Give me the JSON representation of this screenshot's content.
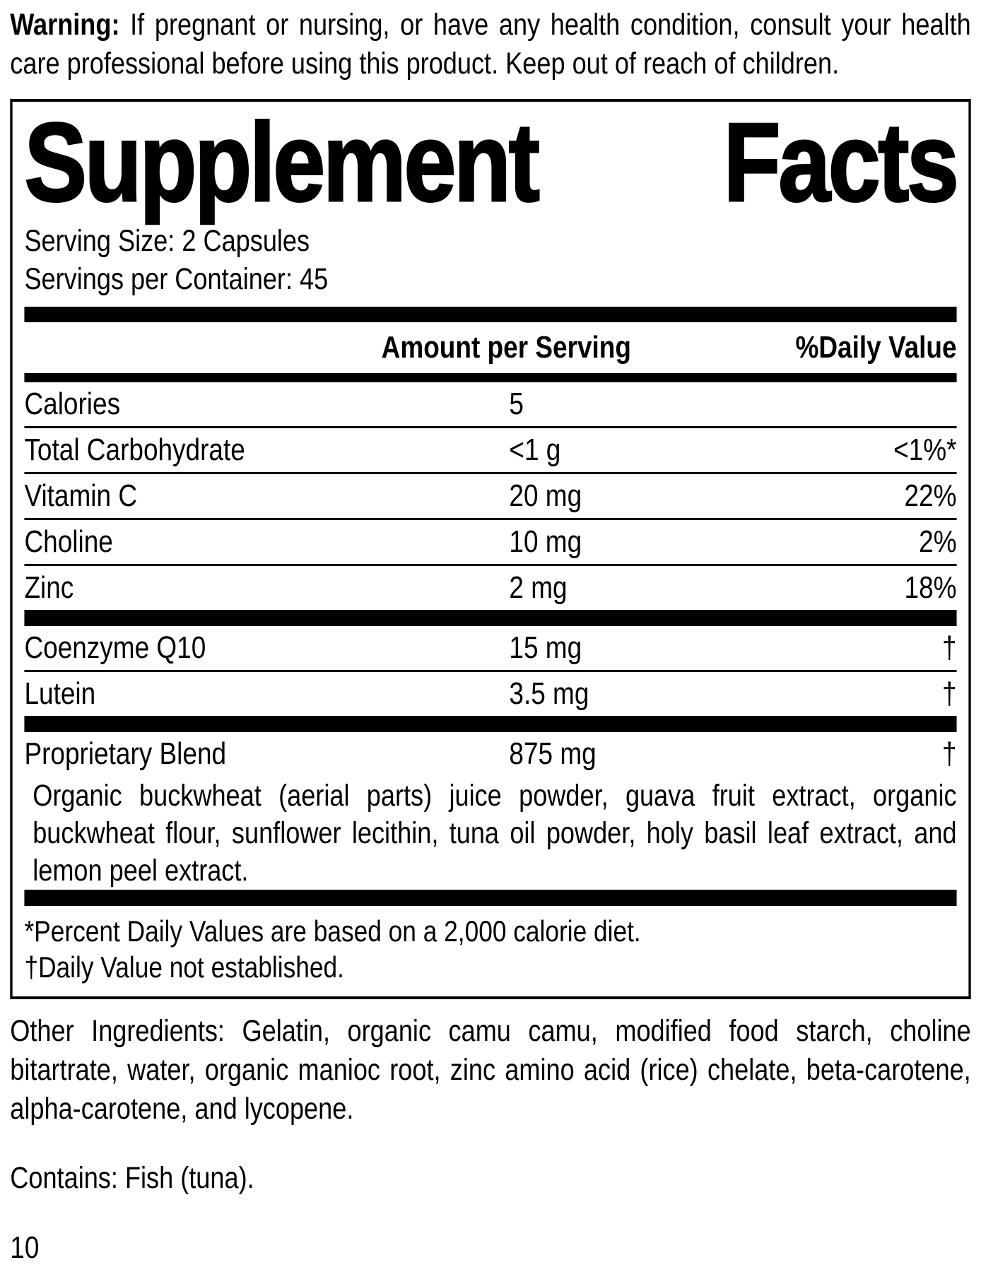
{
  "warning": {
    "label": "Warning:",
    "text": "If pregnant or nursing, or have any health condition, consult your health care professional before using this product. Keep out of reach of children."
  },
  "panel": {
    "title_left": "Supplement",
    "title_right": "Facts",
    "serving_size": "Serving Size: 2 Capsules",
    "servings_per_container": "Servings per Container: 45",
    "columns": {
      "amount": "Amount per Serving",
      "daily_value": "%Daily Value"
    },
    "rows": [
      {
        "name": "Calories",
        "amount": "5",
        "dv": ""
      },
      {
        "name": "Total Carbohydrate",
        "amount": "<1 g",
        "dv": "<1%*"
      },
      {
        "name": "Vitamin C",
        "amount": "20 mg",
        "dv": "22%"
      },
      {
        "name": "Choline",
        "amount": "10 mg",
        "dv": "2%"
      },
      {
        "name": "Zinc",
        "amount": "2 mg",
        "dv": "18%"
      }
    ],
    "rows2": [
      {
        "name": "Coenzyme Q10",
        "amount": "15 mg",
        "dv": "†"
      },
      {
        "name": "Lutein",
        "amount": "3.5 mg",
        "dv": "†"
      }
    ],
    "blend": {
      "name": "Proprietary Blend",
      "amount": "875 mg",
      "dv": "†",
      "description": "Organic buckwheat (aerial parts) juice powder, guava fruit extract, organic buckwheat flour, sunflower lecithin, tuna oil powder, holy basil leaf extract, and lemon peel extract."
    },
    "footnotes": {
      "percent": "*Percent Daily Values are based on a 2,000 calorie diet.",
      "dagger": "†Daily Value not established."
    }
  },
  "other_ingredients": "Other Ingredients: Gelatin, organic camu camu, modified food starch, choline bitartrate, water, organic manioc root, zinc amino acid (rice) chelate, beta-carotene, alpha-carotene, and lycopene.",
  "contains": "Contains: Fish (tuna).",
  "page_number": "10"
}
